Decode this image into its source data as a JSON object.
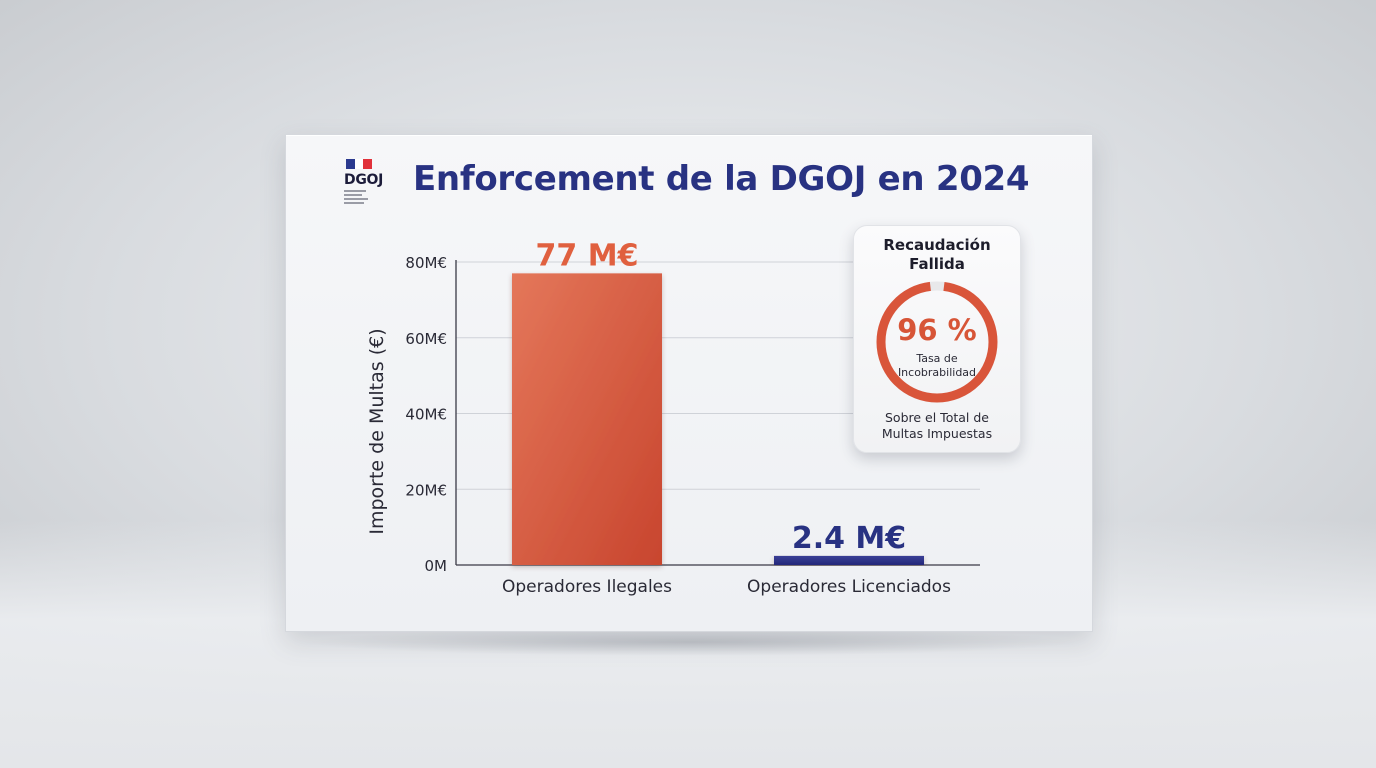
{
  "logo": {
    "name": "DGOJ",
    "flag_colors": [
      "#2b3a8f",
      "#ffffff",
      "#e1323b"
    ]
  },
  "title": "Enforcement de la DGOJ en 2024",
  "chart_data": {
    "type": "bar",
    "title": "Enforcement de la DGOJ en 2024",
    "xlabel": "",
    "ylabel": "Importe de Multas (€)",
    "ylim": [
      0,
      80
    ],
    "yticks": [
      0,
      20,
      40,
      60,
      80
    ],
    "ytick_labels": [
      "0M",
      "20M€",
      "40M€",
      "60M€",
      "80M€"
    ],
    "categories": [
      "Operadores Ilegales",
      "Operadores Licenciados"
    ],
    "values": [
      77,
      2.4
    ],
    "value_labels": [
      "77 M€",
      "2.4 M€"
    ],
    "colors": [
      "#d9553a",
      "#2b3184"
    ],
    "label_colors": [
      "#e0603f",
      "#283282"
    ],
    "grid": true,
    "legend": "none"
  },
  "kpi_card": {
    "title_line1": "Recaudación",
    "title_line2": "Fallida",
    "percent_value": 96,
    "percent_text": "96 %",
    "label_line1": "Tasa de",
    "label_line2": "Incobrabilidad",
    "footer_line1": "Sobre el Total de",
    "footer_line2": "Multas Impuestas",
    "ring_color": "#d9553a",
    "ring_track_color": "#e8e8ea"
  }
}
